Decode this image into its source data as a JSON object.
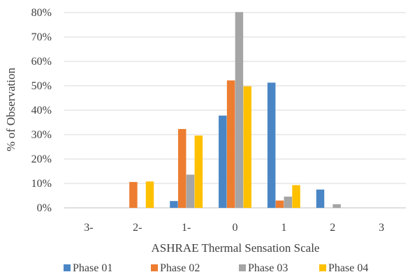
{
  "chart_data": {
    "type": "bar",
    "title": "",
    "xlabel": "ASHRAE Thermal Sensation Scale",
    "ylabel": "% of Observation",
    "categories": [
      "3-",
      "2-",
      "1-",
      "0",
      "1",
      "2",
      "3"
    ],
    "ylim": [
      0,
      80
    ],
    "yticks": [
      "0%",
      "10%",
      "20%",
      "30%",
      "40%",
      "50%",
      "60%",
      "70%",
      "80%"
    ],
    "ytick_values": [
      0,
      10,
      20,
      30,
      40,
      50,
      60,
      70,
      80
    ],
    "grid": true,
    "legend_position": "bottom",
    "series": [
      {
        "name": "Phase 01",
        "color": "#4a86c6",
        "values": [
          0,
          0,
          2.8,
          37.8,
          51.3,
          7.5,
          0
        ]
      },
      {
        "name": "Phase 02",
        "color": "#ed7d31",
        "values": [
          0,
          10.6,
          32.3,
          52.2,
          3.0,
          0,
          0
        ]
      },
      {
        "name": "Phase 03",
        "color": "#a5a5a5",
        "values": [
          0,
          0,
          13.6,
          80.2,
          4.6,
          1.5,
          0
        ]
      },
      {
        "name": "Phase 04",
        "color": "#ffc000",
        "values": [
          0,
          10.8,
          29.6,
          49.8,
          9.3,
          0,
          0
        ]
      }
    ]
  }
}
